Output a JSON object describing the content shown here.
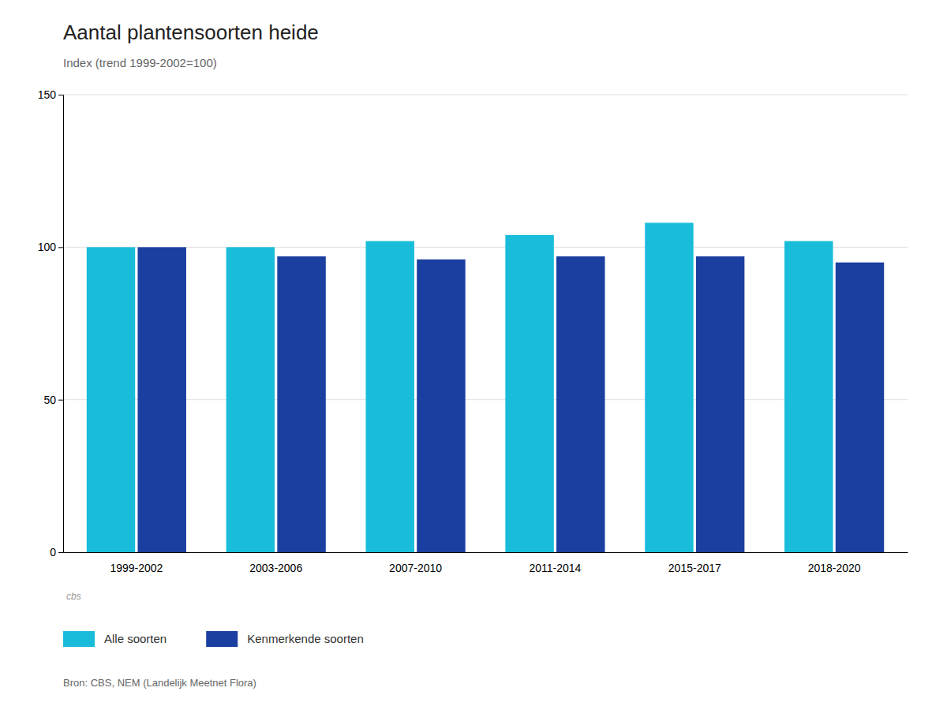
{
  "chart_data": {
    "type": "bar",
    "title": "Aantal plantensoorten heide",
    "subtitle": "Index (trend 1999-2002=100)",
    "categories": [
      "1999-2002",
      "2003-2006",
      "2007-2010",
      "2011-2014",
      "2015-2017",
      "2018-2020"
    ],
    "series": [
      {
        "name": "Alle soorten",
        "color": "#19BDDA",
        "values": [
          100,
          100,
          102,
          104,
          108,
          102
        ]
      },
      {
        "name": "Kenmerkende soorten",
        "color": "#1B3FA0",
        "values": [
          100,
          97,
          96,
          97,
          97,
          95
        ]
      }
    ],
    "ylim": [
      0,
      150
    ],
    "yticks": [
      0,
      50,
      100,
      150
    ],
    "grid": true,
    "legend": "bottom",
    "source": "Bron: CBS, NEM (Landelijk Meetnet Flora)",
    "annotations": [
      "cbs"
    ]
  }
}
